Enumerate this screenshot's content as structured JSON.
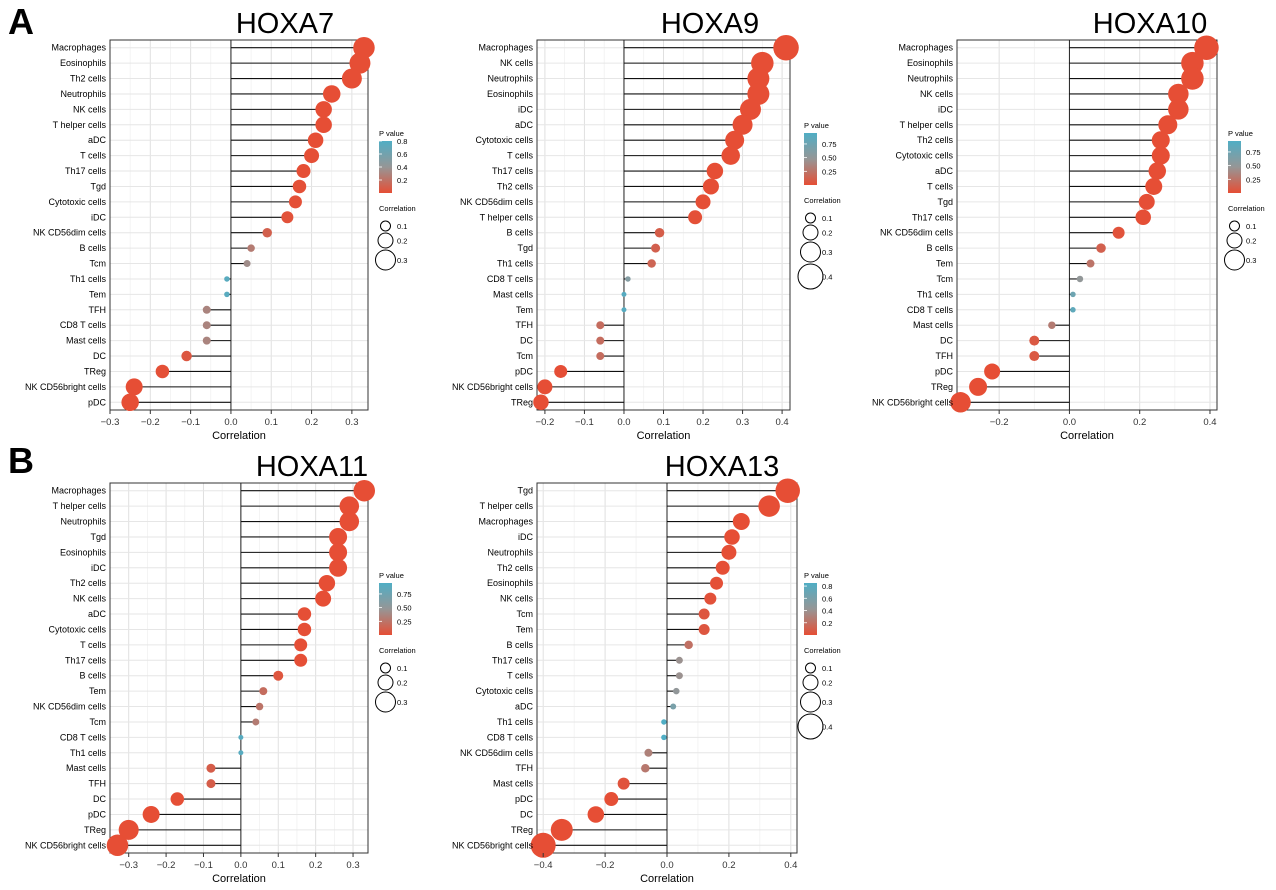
{
  "panel_labels": [
    "A",
    "B"
  ],
  "chart_data": [
    {
      "type": "lollipop",
      "title": "HOXA7",
      "xlabel": "Correlation",
      "xlim": [
        -0.3,
        0.34
      ],
      "xticks": [
        -0.3,
        -0.2,
        -0.1,
        0.0,
        0.1,
        0.2,
        0.3
      ],
      "xtick_labels": [
        "−0.3",
        "−0.2",
        "−0.1",
        "0.0",
        "0.1",
        "0.2",
        "0.3"
      ],
      "grid": true,
      "categories": [
        "Macrophages",
        "Eosinophils",
        "Th2 cells",
        "Neutrophils",
        "NK cells",
        "T helper cells",
        "aDC",
        "T cells",
        "Th17 cells",
        "Tgd",
        "Cytotoxic cells",
        "iDC",
        "NK CD56dim cells",
        "B cells",
        "Tcm",
        "Th1 cells",
        "Tem",
        "TFH",
        "CD8 T cells",
        "Mast cells",
        "DC",
        "TReg",
        "NK CD56bright cells",
        "pDC"
      ],
      "values": [
        0.33,
        0.32,
        0.3,
        0.25,
        0.23,
        0.23,
        0.21,
        0.2,
        0.18,
        0.17,
        0.16,
        0.14,
        0.09,
        0.05,
        0.04,
        -0.01,
        -0.01,
        -0.06,
        -0.06,
        -0.06,
        -0.11,
        -0.17,
        -0.24,
        -0.25
      ],
      "pvalues": [
        0.0001,
        0.0001,
        0.0001,
        0.0005,
        0.001,
        0.001,
        0.002,
        0.003,
        0.005,
        0.01,
        0.01,
        0.02,
        0.1,
        0.25,
        0.35,
        0.75,
        0.75,
        0.3,
        0.3,
        0.3,
        0.05,
        0.01,
        0.0001,
        0.0001
      ],
      "legend": {
        "pvalue_title": "P value",
        "pvalue_ticks": [
          "0.8",
          "0.6",
          "0.4",
          "0.2"
        ],
        "pvalue_range": [
          0.0,
          0.8
        ],
        "size_title": "Correlation",
        "size_labels": [
          "0.1",
          "0.2",
          "0.3"
        ]
      },
      "colors": {
        "low_p": "#e64e35",
        "high_p": "#50aec5"
      }
    },
    {
      "type": "lollipop",
      "title": "HOXA9",
      "xlabel": "Correlation",
      "xlim": [
        -0.22,
        0.42
      ],
      "xticks": [
        -0.2,
        -0.1,
        0.0,
        0.1,
        0.2,
        0.3,
        0.4
      ],
      "xtick_labels": [
        "−0.2",
        "−0.1",
        "0.0",
        "0.1",
        "0.2",
        "0.3",
        "0.4"
      ],
      "grid": true,
      "categories": [
        "Macrophages",
        "NK cells",
        "Neutrophils",
        "Eosinophils",
        "iDC",
        "aDC",
        "Cytotoxic cells",
        "T cells",
        "Th17 cells",
        "Th2 cells",
        "NK CD56dim cells",
        "T helper cells",
        "B cells",
        "Tgd",
        "Th1 cells",
        "CD8 T cells",
        "Mast cells",
        "Tem",
        "TFH",
        "DC",
        "Tcm",
        "pDC",
        "NK CD56bright cells",
        "TReg"
      ],
      "values": [
        0.41,
        0.35,
        0.34,
        0.34,
        0.32,
        0.3,
        0.28,
        0.27,
        0.23,
        0.22,
        0.2,
        0.18,
        0.09,
        0.08,
        0.07,
        0.01,
        0.0,
        0.0,
        -0.06,
        -0.06,
        -0.06,
        -0.16,
        -0.2,
        -0.21
      ],
      "pvalues": [
        0.0001,
        0.0001,
        0.0001,
        0.0001,
        0.0001,
        0.0005,
        0.001,
        0.001,
        0.002,
        0.003,
        0.005,
        0.01,
        0.1,
        0.12,
        0.15,
        0.6,
        0.9,
        0.9,
        0.2,
        0.2,
        0.2,
        0.003,
        0.0005,
        0.0003
      ],
      "legend": {
        "pvalue_title": "P value",
        "pvalue_ticks": [
          "0.75",
          "0.50",
          "0.25"
        ],
        "pvalue_range": [
          0.0,
          0.95
        ],
        "size_title": "Correlation",
        "size_labels": [
          "0.1",
          "0.2",
          "0.3",
          "0.4"
        ]
      },
      "colors": {
        "low_p": "#e64e35",
        "high_p": "#50aec5"
      }
    },
    {
      "type": "lollipop",
      "title": "HOXA10",
      "xlabel": "Correlation",
      "xlim": [
        -0.32,
        0.42
      ],
      "xticks": [
        -0.2,
        0.0,
        0.2,
        0.4
      ],
      "xtick_labels": [
        "−0.2",
        "0.0",
        "0.2",
        "0.4"
      ],
      "grid": true,
      "categories": [
        "Macrophages",
        "Eosinophils",
        "Neutrophils",
        "NK cells",
        "iDC",
        "T helper cells",
        "Th2 cells",
        "Cytotoxic cells",
        "aDC",
        "T cells",
        "Tgd",
        "Th17 cells",
        "NK CD56dim cells",
        "B cells",
        "Tem",
        "Tcm",
        "Th1 cells",
        "CD8 T cells",
        "Mast cells",
        "DC",
        "TFH",
        "pDC",
        "TReg",
        "NK CD56bright cells"
      ],
      "values": [
        0.39,
        0.35,
        0.35,
        0.31,
        0.31,
        0.28,
        0.26,
        0.26,
        0.25,
        0.24,
        0.22,
        0.21,
        0.14,
        0.09,
        0.06,
        0.03,
        0.01,
        0.01,
        -0.05,
        -0.1,
        -0.1,
        -0.22,
        -0.26,
        -0.31
      ],
      "pvalues": [
        0.0001,
        0.0001,
        0.0001,
        0.0001,
        0.0001,
        0.0003,
        0.001,
        0.001,
        0.001,
        0.002,
        0.003,
        0.004,
        0.03,
        0.12,
        0.25,
        0.5,
        0.75,
        0.85,
        0.3,
        0.07,
        0.07,
        0.0003,
        0.0001,
        0.0001
      ],
      "legend": {
        "pvalue_title": "P value",
        "pvalue_ticks": [
          "0.75",
          "0.50",
          "0.25"
        ],
        "pvalue_range": [
          0.0,
          0.95
        ],
        "size_title": "Correlation",
        "size_labels": [
          "0.1",
          "0.2",
          "0.3"
        ]
      },
      "colors": {
        "low_p": "#e64e35",
        "high_p": "#50aec5"
      }
    },
    {
      "type": "lollipop",
      "title": "HOXA11",
      "xlabel": "Correlation",
      "xlim": [
        -0.35,
        0.34
      ],
      "xticks": [
        -0.3,
        -0.2,
        -0.1,
        0.0,
        0.1,
        0.2,
        0.3
      ],
      "xtick_labels": [
        "−0.3",
        "−0.2",
        "−0.1",
        "0.0",
        "0.1",
        "0.2",
        "0.3"
      ],
      "grid": true,
      "categories": [
        "Macrophages",
        "T helper cells",
        "Neutrophils",
        "Tgd",
        "Eosinophils",
        "iDC",
        "Th2 cells",
        "NK cells",
        "aDC",
        "Cytotoxic cells",
        "T cells",
        "Th17 cells",
        "B cells",
        "Tem",
        "NK CD56dim cells",
        "Tcm",
        "CD8 T cells",
        "Th1 cells",
        "Mast cells",
        "TFH",
        "DC",
        "pDC",
        "TReg",
        "NK CD56bright cells"
      ],
      "values": [
        0.33,
        0.29,
        0.29,
        0.26,
        0.26,
        0.26,
        0.23,
        0.22,
        0.17,
        0.17,
        0.16,
        0.16,
        0.1,
        0.06,
        0.05,
        0.04,
        0.0,
        0.0,
        -0.08,
        -0.08,
        -0.17,
        -0.24,
        -0.3,
        -0.33
      ],
      "pvalues": [
        0.0001,
        0.0001,
        0.0001,
        0.0001,
        0.0001,
        0.0001,
        0.0005,
        0.0008,
        0.004,
        0.004,
        0.005,
        0.005,
        0.05,
        0.2,
        0.25,
        0.3,
        0.9,
        0.9,
        0.1,
        0.1,
        0.005,
        0.0002,
        0.0001,
        0.0001
      ],
      "legend": {
        "pvalue_title": "P value",
        "pvalue_ticks": [
          "0.75",
          "0.50",
          "0.25"
        ],
        "pvalue_range": [
          0.0,
          0.95
        ],
        "size_title": "Correlation",
        "size_labels": [
          "0.1",
          "0.2",
          "0.3"
        ]
      },
      "colors": {
        "low_p": "#e64e35",
        "high_p": "#50aec5"
      }
    },
    {
      "type": "lollipop",
      "title": "HOXA13",
      "xlabel": "Correlation",
      "xlim": [
        -0.42,
        0.42
      ],
      "xticks": [
        -0.4,
        -0.2,
        0.0,
        0.2,
        0.4
      ],
      "xtick_labels": [
        "−0.4",
        "−0.2",
        "0.0",
        "0.2",
        "0.4"
      ],
      "grid": true,
      "categories": [
        "Tgd",
        "T helper cells",
        "Macrophages",
        "iDC",
        "Neutrophils",
        "Th2 cells",
        "Eosinophils",
        "NK cells",
        "Tcm",
        "Tem",
        "B cells",
        "Th17 cells",
        "T cells",
        "Cytotoxic cells",
        "aDC",
        "Th1 cells",
        "CD8 T cells",
        "NK CD56dim cells",
        "TFH",
        "Mast cells",
        "pDC",
        "DC",
        "TReg",
        "NK CD56bright cells"
      ],
      "values": [
        0.39,
        0.33,
        0.24,
        0.21,
        0.2,
        0.18,
        0.16,
        0.14,
        0.12,
        0.12,
        0.07,
        0.04,
        0.04,
        0.03,
        0.02,
        -0.01,
        -0.01,
        -0.06,
        -0.07,
        -0.14,
        -0.18,
        -0.23,
        -0.34,
        -0.4
      ],
      "pvalues": [
        0.0001,
        0.0001,
        0.001,
        0.002,
        0.003,
        0.005,
        0.01,
        0.02,
        0.05,
        0.05,
        0.2,
        0.4,
        0.4,
        0.45,
        0.6,
        0.85,
        0.85,
        0.3,
        0.25,
        0.03,
        0.005,
        0.001,
        0.0001,
        0.0001
      ],
      "legend": {
        "pvalue_title": "P value",
        "pvalue_ticks": [
          "0.8",
          "0.6",
          "0.4",
          "0.2"
        ],
        "pvalue_range": [
          0.0,
          0.85
        ],
        "size_title": "Correlation",
        "size_labels": [
          "0.1",
          "0.2",
          "0.3",
          "0.4"
        ]
      },
      "colors": {
        "low_p": "#e64e35",
        "high_p": "#50aec5"
      }
    }
  ]
}
